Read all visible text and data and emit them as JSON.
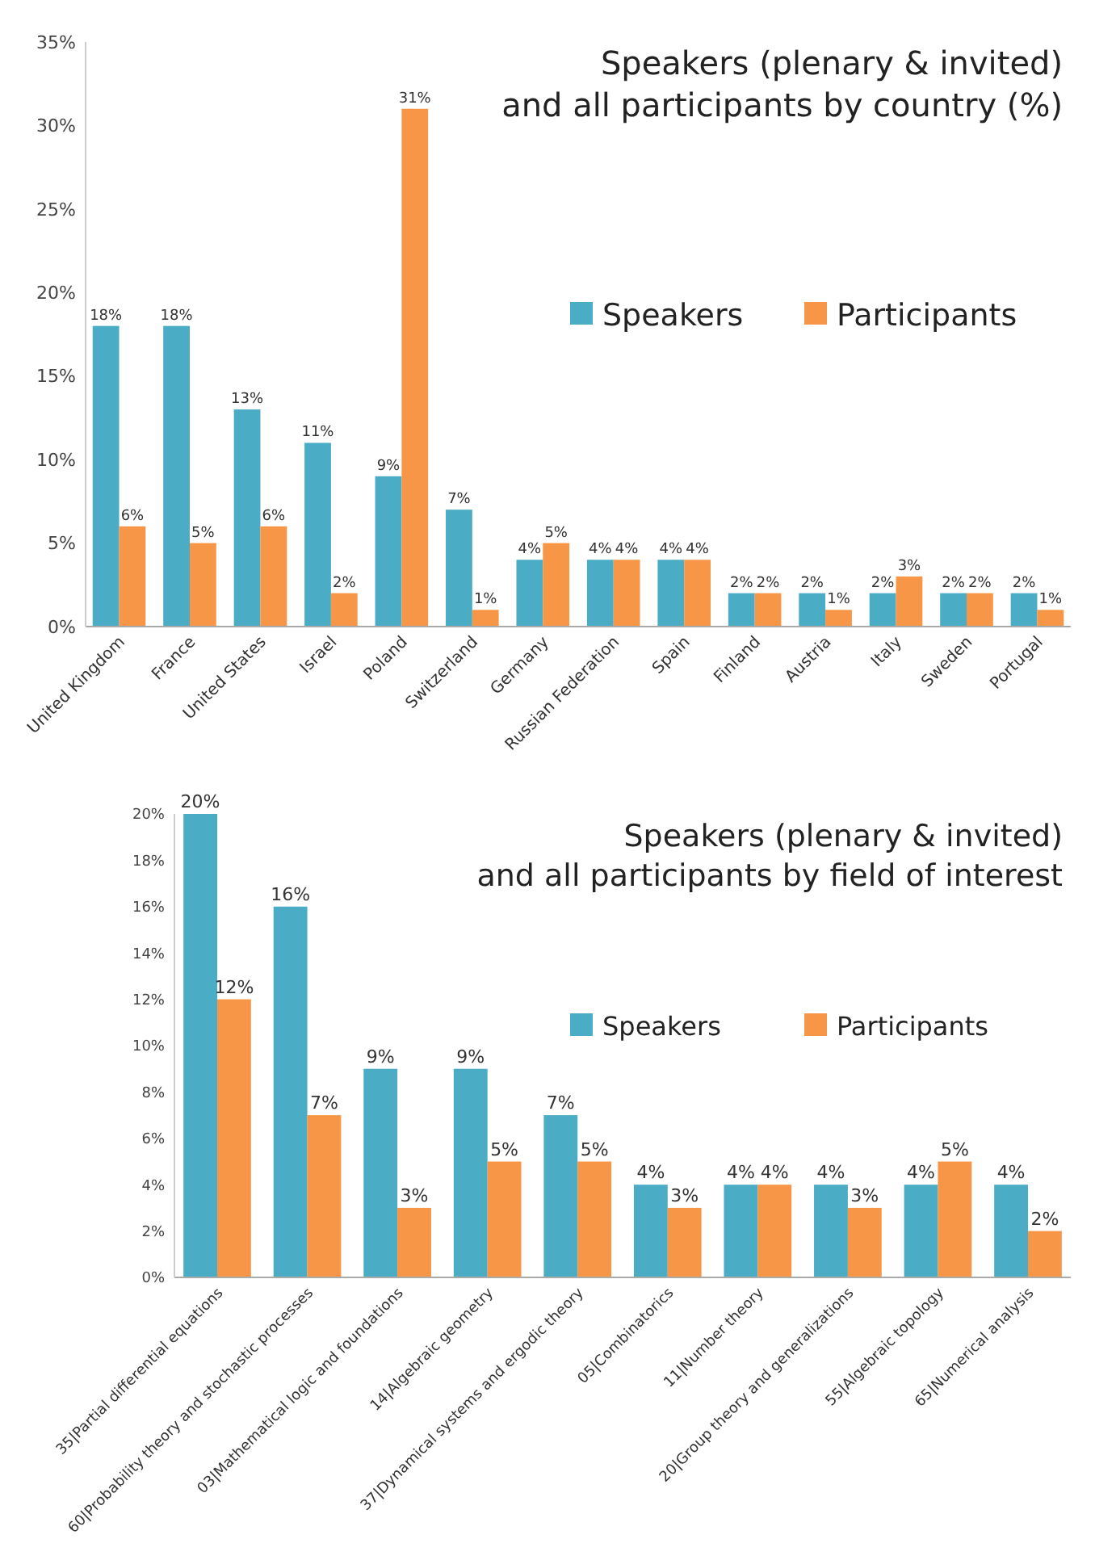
{
  "chart_data": [
    {
      "type": "bar",
      "title": "Speakers (plenary & invited)\nand all participants by country (%)",
      "categories": [
        "United Kingdom",
        "France",
        "United States",
        "Israel",
        "Poland",
        "Switzerland",
        "Germany",
        "Russian Federation",
        "Spain",
        "Finland",
        "Austria",
        "Italy",
        "Sweden",
        "Portugal"
      ],
      "series": [
        {
          "name": "Speakers",
          "color": "#4bacc6",
          "values": [
            18,
            18,
            13,
            11,
            9,
            7,
            4,
            4,
            4,
            2,
            2,
            2,
            2,
            2
          ],
          "value_labels": [
            "18%",
            "18%",
            "13%",
            "11%",
            "9%",
            "7%",
            "4%",
            "4%",
            "4%",
            "2%",
            "2%",
            "2%",
            "2%",
            "2%"
          ]
        },
        {
          "name": "Participants",
          "color": "#f79646",
          "values": [
            6,
            5,
            6,
            2,
            31,
            1,
            5,
            4,
            4,
            2,
            1,
            3,
            2,
            1
          ],
          "value_labels": [
            "6%",
            "5%",
            "6%",
            "2%",
            "31%",
            "1%",
            "5%",
            "4%",
            "4%",
            "2%",
            "1%",
            "3%",
            "2%",
            "1%"
          ]
        }
      ],
      "ylim": [
        0,
        35
      ],
      "yticks": [
        {
          "value": 0,
          "label": "0%"
        },
        {
          "value": 5,
          "label": "5%"
        },
        {
          "value": 10,
          "label": "10%"
        },
        {
          "value": 15,
          "label": "15%"
        },
        {
          "value": 20,
          "label": "20%"
        },
        {
          "value": 25,
          "label": "25%"
        },
        {
          "value": 30,
          "label": "30%"
        },
        {
          "value": 35,
          "label": "35%"
        }
      ],
      "legend": "right",
      "grid": false
    },
    {
      "type": "bar",
      "title": "Speakers (plenary & invited)\nand all participants by field of interest",
      "categories": [
        "35|Partial differential  equations",
        "60|Probability theory and stochastic processes",
        "03|Mathematical  logic and foundations",
        "14|Algebraic geometry",
        "37|Dynamical systems and ergodic theory",
        "05|Combinatorics",
        "11|Number theory",
        "20|Group theory and generalizations",
        "55|Algebraic topology",
        "65|Numerical  analysis"
      ],
      "series": [
        {
          "name": "Speakers",
          "color": "#4bacc6",
          "values": [
            20,
            16,
            9,
            9,
            7,
            4,
            4,
            4,
            4,
            4
          ],
          "value_labels": [
            "20%",
            "16%",
            "9%",
            "9%",
            "7%",
            "4%",
            "4%",
            "4%",
            "4%",
            "4%"
          ]
        },
        {
          "name": "Participants",
          "color": "#f79646",
          "values": [
            12,
            7,
            3,
            5,
            5,
            3,
            4,
            3,
            5,
            2
          ],
          "value_labels": [
            "12%",
            "7%",
            "3%",
            "5%",
            "5%",
            "3%",
            "4%",
            "3%",
            "5%",
            "2%"
          ]
        }
      ],
      "ylim": [
        0,
        20
      ],
      "yticks": [
        {
          "value": 0,
          "label": "0%"
        },
        {
          "value": 2,
          "label": "2%"
        },
        {
          "value": 4,
          "label": "4%"
        },
        {
          "value": 6,
          "label": "6%"
        },
        {
          "value": 8,
          "label": "8%"
        },
        {
          "value": 10,
          "label": "10%"
        },
        {
          "value": 12,
          "label": "12%"
        },
        {
          "value": 14,
          "label": "14%"
        },
        {
          "value": 16,
          "label": "16%"
        },
        {
          "value": 18,
          "label": "18%"
        },
        {
          "value": 20,
          "label": "20%"
        }
      ],
      "legend": "right",
      "grid": false
    }
  ]
}
